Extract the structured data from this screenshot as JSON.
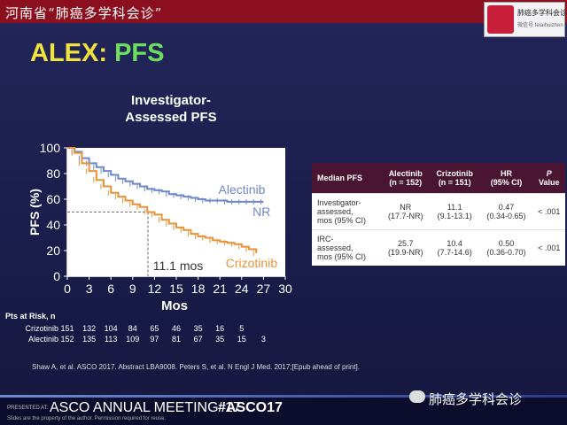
{
  "header": {
    "title": "河南省“肺癌多学科会诊”",
    "badge_title": "肺癌多学科会诊",
    "badge_sub": "微信号 feiaihuizhen"
  },
  "slide": {
    "title_part1": "ALEX:",
    "title_part2": "PFS"
  },
  "chart_data": {
    "type": "line",
    "title": "Investigator-Assessed PFS",
    "title_line1": "Investigator-",
    "title_line2": "Assessed PFS",
    "xlabel": "Mos",
    "ylabel": "PFS (%)",
    "xlim": [
      0,
      30
    ],
    "ylim": [
      0,
      100
    ],
    "xticks": [
      "0",
      "3",
      "6",
      "9",
      "12",
      "15",
      "18",
      "21",
      "24",
      "27",
      "30"
    ],
    "yticks": [
      "0",
      "20",
      "40",
      "60",
      "80",
      "100"
    ],
    "median_annotation": "11.1 mos",
    "series": [
      {
        "name": "Alectinib",
        "color": "#6f87c8",
        "end_label": "NR",
        "x": [
          0,
          1,
          2,
          3,
          4,
          5,
          6,
          7,
          8,
          9,
          10,
          11,
          12,
          13,
          14,
          15,
          16,
          17,
          18,
          19,
          20,
          21,
          22,
          23,
          24,
          25,
          26,
          27
        ],
        "y": [
          100,
          97,
          92,
          88,
          85,
          82,
          79,
          76,
          74,
          72,
          70,
          68,
          67,
          66,
          64,
          63,
          62,
          61,
          60,
          59,
          59,
          59,
          58,
          58,
          58,
          58,
          58,
          58
        ]
      },
      {
        "name": "Crizotinib",
        "color": "#e8923a",
        "x": [
          0,
          1,
          2,
          3,
          4,
          5,
          6,
          7,
          8,
          9,
          10,
          11,
          12,
          13,
          14,
          15,
          16,
          17,
          18,
          19,
          20,
          21,
          22,
          23,
          24,
          25,
          26
        ],
        "y": [
          100,
          96,
          88,
          82,
          75,
          70,
          65,
          62,
          59,
          56,
          54,
          50,
          48,
          44,
          41,
          38,
          36,
          33,
          31,
          30,
          28,
          27,
          26,
          25,
          23,
          21,
          18
        ]
      }
    ],
    "risk": {
      "header": "Pts at Risk, n",
      "rows": [
        {
          "name": "Crizotinib",
          "values": [
            "151",
            "132",
            "104",
            "84",
            "65",
            "46",
            "35",
            "16",
            "5"
          ]
        },
        {
          "name": "Alectinib",
          "values": [
            "152",
            "135",
            "113",
            "109",
            "97",
            "81",
            "67",
            "35",
            "15",
            "3"
          ]
        }
      ]
    }
  },
  "table": {
    "headers": [
      [
        "Median PFS"
      ],
      [
        "Alectinib",
        "(n = 152)"
      ],
      [
        "Crizotinib",
        "(n = 151)"
      ],
      [
        "HR",
        "(95% CI)"
      ],
      [
        "P",
        "Value"
      ]
    ],
    "rows": [
      {
        "label": [
          "Investigator-",
          "assessed,",
          "mos (95% CI)"
        ],
        "a": [
          "NR",
          "(17.7-NR)"
        ],
        "c": [
          "11.1",
          "(9.1-13.1)"
        ],
        "hr": [
          "0.47",
          "(0.34-0.65)"
        ],
        "p": "< .001"
      },
      {
        "label": [
          "IRC-",
          "assessed,",
          "mos (95% CI)"
        ],
        "a": [
          "25.7",
          "(19.9-NR)"
        ],
        "c": [
          "10.4",
          "(7.7-14.6)"
        ],
        "hr": [
          "0.50",
          "(0.36-0.70)"
        ],
        "p": "< .001"
      }
    ]
  },
  "citation": "Shaw A, et al. ASCO 2017. Abstract LBA9008. Peters S, et al. N Engl J Med. 2017;[Epub ahead of print].",
  "footer": {
    "presented": "PRESENTED AT:",
    "meeting": "ASCO ANNUAL MEETING '17",
    "hashtag": "#ASCO17",
    "disclaimer": "Slides are the property of the author. Permission required for reuse.",
    "wechat": "肺癌多学科会诊"
  }
}
